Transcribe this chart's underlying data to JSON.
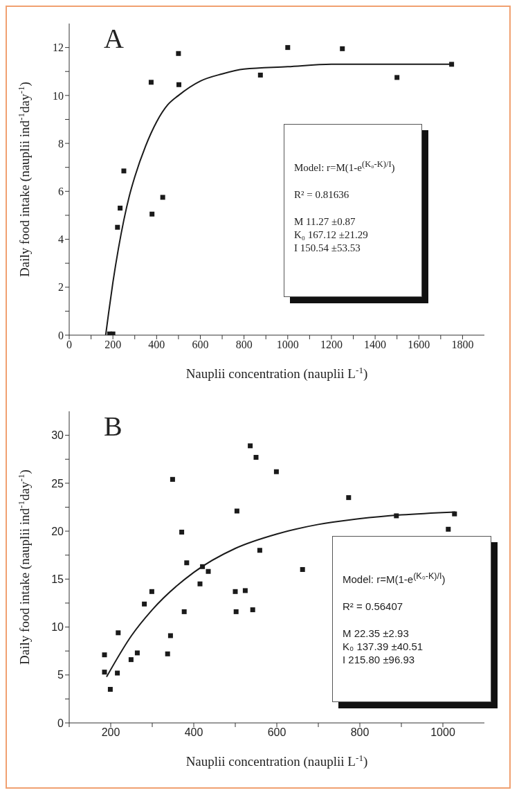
{
  "chart_data": [
    {
      "type": "scatter",
      "title": "A",
      "xlabel": "Nauplii concentration (nauplii L$^{-1}$)",
      "ylabel": "Daily food intake (nauplii ind$^{-1}$day$^{-1}$)",
      "xlim": [
        0,
        1900
      ],
      "ylim": [
        0,
        13
      ],
      "xticks": [
        0,
        {
          "value": 100,
          "label": null
        },
        200,
        {
          "value": 300,
          "label": null
        },
        400,
        {
          "value": 500,
          "label": null
        },
        600,
        {
          "value": 700,
          "label": null
        },
        800,
        {
          "value": 900,
          "label": null
        },
        1000,
        {
          "value": 1100,
          "label": null
        },
        1200,
        {
          "value": 1300,
          "label": null
        },
        1400,
        {
          "value": 1500,
          "label": null
        },
        1600,
        {
          "value": 1700,
          "label": null
        },
        1800
      ],
      "yticks": [
        0,
        {
          "value": 1,
          "label": null
        },
        2,
        {
          "value": 3,
          "label": null
        },
        4,
        {
          "value": 5,
          "label": null
        },
        6,
        {
          "value": 7,
          "label": null
        },
        8,
        {
          "value": 9,
          "label": null
        },
        10,
        {
          "value": 11,
          "label": null
        },
        12
      ],
      "series": [
        {
          "marker": "square",
          "color": "#1a1a1a",
          "x": [
            185,
            200,
            221,
            233,
            250,
            375,
            379,
            428,
            500,
            502,
            875,
            1000,
            1250,
            1500,
            1750
          ],
          "values": [
            0.05,
            0.05,
            4.5,
            5.3,
            6.85,
            10.55,
            5.05,
            5.75,
            11.75,
            10.45,
            10.85,
            12.0,
            11.95,
            10.75,
            11.3
          ]
        },
        {
          "type": "line",
          "line_style": "solid",
          "color": "#1a1a1a",
          "x": [
            167,
            180,
            200,
            225,
            250,
            275,
            300,
            350,
            400,
            450,
            500,
            600,
            700,
            800,
            1000,
            1200,
            1500,
            1750
          ],
          "values": [
            0,
            0.9,
            2.2,
            3.6,
            4.8,
            5.8,
            6.6,
            7.9,
            8.9,
            9.6,
            10.0,
            10.6,
            10.9,
            11.1,
            11.2,
            11.3,
            11.3,
            11.3
          ]
        }
      ],
      "annotations": [
        "Model: r=M(1-e$^{(K₀-K)/I}$)",
        "R² = 0.81636",
        "M 11.27 ±0.87",
        "K₀ 167.12 ±21.29",
        "I 150.54 ±53.53"
      ]
    },
    {
      "type": "scatter",
      "title": "B",
      "xlabel": "Nauplii concentration (nauplii L$^{-1}$)",
      "ylabel": "Daily food intake (nauplii ind$^{-1}$day$^{-1}$)",
      "xlim": [
        100,
        1100
      ],
      "ylim": [
        0,
        32.5
      ],
      "xticks": [
        {
          "value": 100,
          "label": null
        },
        200,
        {
          "value": 300,
          "label": null
        },
        400,
        {
          "value": 500,
          "label": null
        },
        600,
        {
          "value": 700,
          "label": null
        },
        800,
        {
          "value": 900,
          "label": null
        },
        1000
      ],
      "yticks": [
        0,
        {
          "value": 2.5,
          "label": null
        },
        5,
        {
          "value": 7.5,
          "label": null
        },
        10,
        {
          "value": 12.5,
          "label": null
        },
        15,
        {
          "value": 17.5,
          "label": null
        },
        20,
        {
          "value": 22.5,
          "label": null
        },
        25,
        {
          "value": 27.5,
          "label": null
        },
        30
      ],
      "series": [
        {
          "marker": "square",
          "color": "#1a1a1a",
          "x": [
            185,
            185,
            199,
            216,
            218,
            249,
            264,
            281,
            299,
            337,
            344,
            349,
            371,
            377,
            383,
            415,
            421,
            435,
            500,
            502,
            504,
            524,
            536,
            542,
            550,
            559,
            599,
            662,
            773,
            888,
            1013,
            1028
          ],
          "values": [
            7.1,
            5.3,
            3.5,
            5.2,
            9.4,
            6.6,
            7.3,
            12.4,
            13.7,
            7.2,
            9.1,
            25.4,
            19.9,
            11.6,
            16.7,
            14.5,
            16.3,
            15.8,
            13.7,
            11.6,
            22.1,
            13.8,
            28.9,
            11.8,
            27.7,
            18.0,
            26.2,
            16.0,
            23.5,
            21.6,
            20.2,
            21.8
          ]
        },
        {
          "type": "line",
          "line_style": "solid",
          "color": "#1a1a1a",
          "x": [
            190,
            250,
            300,
            400,
            500,
            600,
            700,
            800,
            900,
            1030
          ],
          "values": [
            4.8,
            9.1,
            11.8,
            15.7,
            18.2,
            19.7,
            20.7,
            21.3,
            21.7,
            22.0
          ]
        }
      ],
      "annotations": [
        "Model: r=M(1-e$^{(K₀-K)/I}$)",
        "R² = 0.56407",
        "M 22.35 ±2.93",
        "K₀ 137.39 ±40.51",
        "I 215.80 ±96.93"
      ]
    }
  ]
}
